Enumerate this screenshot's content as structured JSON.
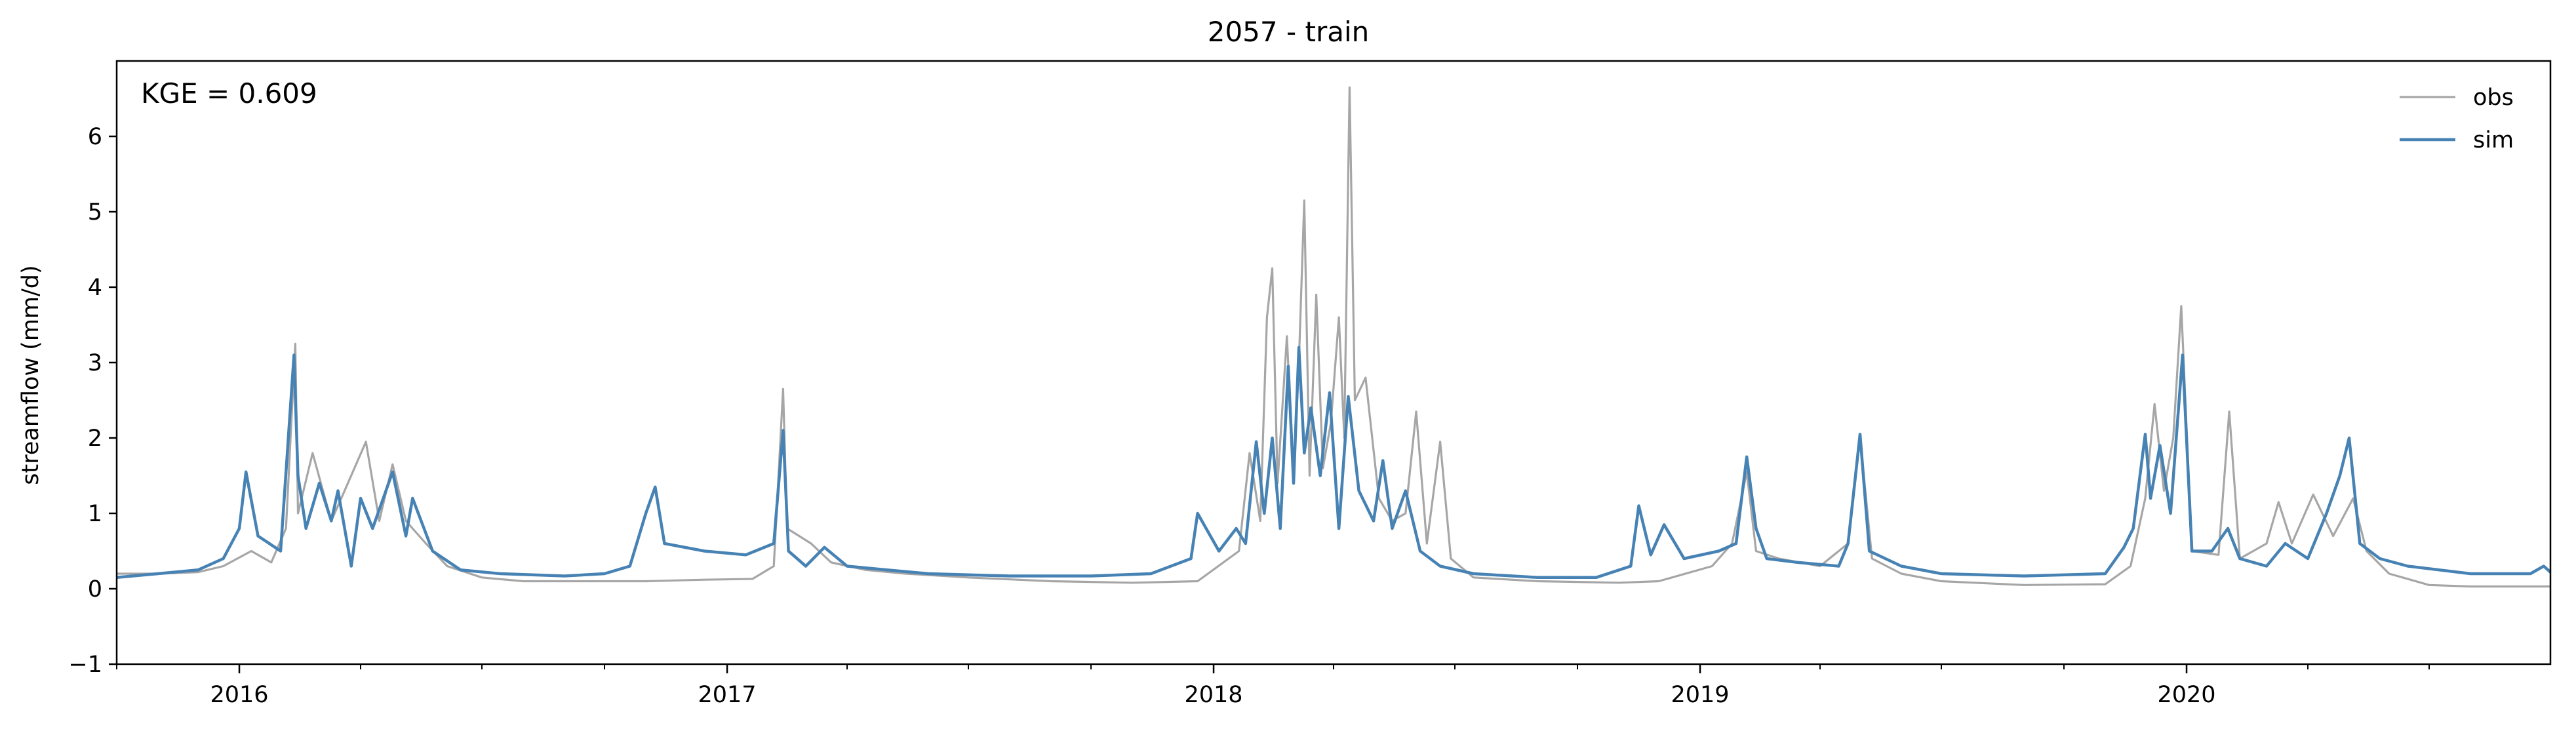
{
  "chart_data": {
    "type": "line",
    "title": "2057 - train",
    "xlabel": "",
    "ylabel": "streamflow (mm/d)",
    "annotation": "KGE = 0.609",
    "xlim": [
      "2015-10-01",
      "2020-09-30"
    ],
    "ylim": [
      -1,
      7
    ],
    "yticks": [
      -1,
      0,
      1,
      2,
      3,
      4,
      5,
      6
    ],
    "xticks": [
      {
        "date": "2016-01-01",
        "label": "2016"
      },
      {
        "date": "2017-01-01",
        "label": "2017"
      },
      {
        "date": "2018-01-01",
        "label": "2018"
      },
      {
        "date": "2019-01-01",
        "label": "2019"
      },
      {
        "date": "2020-01-01",
        "label": "2020"
      }
    ],
    "legend": {
      "placement": "top-right"
    },
    "grid": false,
    "series": [
      {
        "name": "obs",
        "color": "#a6a6a6",
        "points": [
          [
            "2015-10-01",
            0.2
          ],
          [
            "2015-11-01",
            0.2
          ],
          [
            "2015-12-01",
            0.22
          ],
          [
            "2015-12-20",
            0.3
          ],
          [
            "2016-01-10",
            0.5
          ],
          [
            "2016-01-25",
            0.35
          ],
          [
            "2016-02-05",
            0.8
          ],
          [
            "2016-02-12",
            3.25
          ],
          [
            "2016-02-14",
            1.0
          ],
          [
            "2016-02-25",
            1.8
          ],
          [
            "2016-03-10",
            0.9
          ],
          [
            "2016-03-20",
            1.3
          ],
          [
            "2016-04-05",
            1.95
          ],
          [
            "2016-04-15",
            0.9
          ],
          [
            "2016-04-25",
            1.65
          ],
          [
            "2016-05-05",
            0.9
          ],
          [
            "2016-05-20",
            0.6
          ],
          [
            "2016-06-05",
            0.3
          ],
          [
            "2016-07-01",
            0.15
          ],
          [
            "2016-08-01",
            0.1
          ],
          [
            "2016-09-01",
            0.1
          ],
          [
            "2016-10-01",
            0.1
          ],
          [
            "2016-11-01",
            0.1
          ],
          [
            "2016-12-15",
            0.12
          ],
          [
            "2017-01-20",
            0.13
          ],
          [
            "2017-02-05",
            0.3
          ],
          [
            "2017-02-12",
            2.65
          ],
          [
            "2017-02-15",
            0.8
          ],
          [
            "2017-03-05",
            0.6
          ],
          [
            "2017-03-20",
            0.35
          ],
          [
            "2017-04-15",
            0.25
          ],
          [
            "2017-05-15",
            0.2
          ],
          [
            "2017-07-01",
            0.15
          ],
          [
            "2017-09-01",
            0.1
          ],
          [
            "2017-11-01",
            0.08
          ],
          [
            "2017-12-20",
            0.1
          ],
          [
            "2018-01-20",
            0.5
          ],
          [
            "2018-01-28",
            1.8
          ],
          [
            "2018-02-05",
            0.9
          ],
          [
            "2018-02-10",
            3.6
          ],
          [
            "2018-02-14",
            4.25
          ],
          [
            "2018-02-18",
            1.4
          ],
          [
            "2018-02-25",
            3.35
          ],
          [
            "2018-03-02",
            1.5
          ],
          [
            "2018-03-06",
            3.0
          ],
          [
            "2018-03-10",
            5.15
          ],
          [
            "2018-03-14",
            1.5
          ],
          [
            "2018-03-19",
            3.9
          ],
          [
            "2018-03-24",
            1.6
          ],
          [
            "2018-03-30",
            2.2
          ],
          [
            "2018-04-05",
            3.6
          ],
          [
            "2018-04-09",
            2.0
          ],
          [
            "2018-04-13",
            6.65
          ],
          [
            "2018-04-17",
            2.5
          ],
          [
            "2018-04-25",
            2.8
          ],
          [
            "2018-05-05",
            1.2
          ],
          [
            "2018-05-15",
            0.9
          ],
          [
            "2018-05-25",
            1.0
          ],
          [
            "2018-06-02",
            2.35
          ],
          [
            "2018-06-10",
            0.6
          ],
          [
            "2018-06-20",
            1.95
          ],
          [
            "2018-06-28",
            0.4
          ],
          [
            "2018-07-15",
            0.15
          ],
          [
            "2018-09-01",
            0.1
          ],
          [
            "2018-11-01",
            0.08
          ],
          [
            "2018-12-01",
            0.1
          ],
          [
            "2019-01-10",
            0.3
          ],
          [
            "2019-01-25",
            0.6
          ],
          [
            "2019-02-05",
            1.55
          ],
          [
            "2019-02-12",
            0.5
          ],
          [
            "2019-03-01",
            0.4
          ],
          [
            "2019-04-01",
            0.3
          ],
          [
            "2019-04-22",
            0.6
          ],
          [
            "2019-05-01",
            2.0
          ],
          [
            "2019-05-10",
            0.4
          ],
          [
            "2019-06-01",
            0.2
          ],
          [
            "2019-07-01",
            0.1
          ],
          [
            "2019-09-01",
            0.05
          ],
          [
            "2019-11-01",
            0.06
          ],
          [
            "2019-11-20",
            0.3
          ],
          [
            "2019-12-01",
            1.2
          ],
          [
            "2019-12-08",
            2.45
          ],
          [
            "2019-12-15",
            1.3
          ],
          [
            "2019-12-22",
            2.0
          ],
          [
            "2019-12-28",
            3.75
          ],
          [
            "2020-01-05",
            0.5
          ],
          [
            "2020-01-25",
            0.45
          ],
          [
            "2020-02-02",
            2.35
          ],
          [
            "2020-02-10",
            0.4
          ],
          [
            "2020-03-01",
            0.6
          ],
          [
            "2020-03-10",
            1.15
          ],
          [
            "2020-03-20",
            0.6
          ],
          [
            "2020-04-05",
            1.25
          ],
          [
            "2020-04-20",
            0.7
          ],
          [
            "2020-05-05",
            1.2
          ],
          [
            "2020-05-15",
            0.5
          ],
          [
            "2020-06-01",
            0.2
          ],
          [
            "2020-07-01",
            0.05
          ],
          [
            "2020-08-01",
            0.03
          ],
          [
            "2020-09-30",
            0.03
          ]
        ]
      },
      {
        "name": "sim",
        "color": "#4682b4",
        "points": [
          [
            "2015-10-01",
            0.15
          ],
          [
            "2015-11-01",
            0.2
          ],
          [
            "2015-12-01",
            0.25
          ],
          [
            "2015-12-20",
            0.4
          ],
          [
            "2016-01-01",
            0.8
          ],
          [
            "2016-01-06",
            1.55
          ],
          [
            "2016-01-15",
            0.7
          ],
          [
            "2016-02-01",
            0.5
          ],
          [
            "2016-02-11",
            3.1
          ],
          [
            "2016-02-14",
            1.5
          ],
          [
            "2016-02-20",
            0.8
          ],
          [
            "2016-03-01",
            1.4
          ],
          [
            "2016-03-10",
            0.9
          ],
          [
            "2016-03-15",
            1.3
          ],
          [
            "2016-03-25",
            0.3
          ],
          [
            "2016-04-01",
            1.2
          ],
          [
            "2016-04-10",
            0.8
          ],
          [
            "2016-04-25",
            1.55
          ],
          [
            "2016-05-05",
            0.7
          ],
          [
            "2016-05-10",
            1.2
          ],
          [
            "2016-05-25",
            0.5
          ],
          [
            "2016-06-15",
            0.25
          ],
          [
            "2016-07-15",
            0.2
          ],
          [
            "2016-09-01",
            0.17
          ],
          [
            "2016-10-01",
            0.2
          ],
          [
            "2016-10-20",
            0.3
          ],
          [
            "2016-11-01",
            1.0
          ],
          [
            "2016-11-08",
            1.35
          ],
          [
            "2016-11-15",
            0.6
          ],
          [
            "2016-12-15",
            0.5
          ],
          [
            "2017-01-15",
            0.45
          ],
          [
            "2017-02-05",
            0.6
          ],
          [
            "2017-02-12",
            2.1
          ],
          [
            "2017-02-16",
            0.5
          ],
          [
            "2017-03-01",
            0.3
          ],
          [
            "2017-03-15",
            0.55
          ],
          [
            "2017-04-01",
            0.3
          ],
          [
            "2017-05-01",
            0.25
          ],
          [
            "2017-06-01",
            0.2
          ],
          [
            "2017-08-01",
            0.17
          ],
          [
            "2017-10-01",
            0.17
          ],
          [
            "2017-11-15",
            0.2
          ],
          [
            "2017-12-15",
            0.4
          ],
          [
            "2017-12-20",
            1.0
          ],
          [
            "2018-01-05",
            0.5
          ],
          [
            "2018-01-18",
            0.8
          ],
          [
            "2018-01-25",
            0.6
          ],
          [
            "2018-02-02",
            1.95
          ],
          [
            "2018-02-08",
            1.0
          ],
          [
            "2018-02-14",
            2.0
          ],
          [
            "2018-02-20",
            0.8
          ],
          [
            "2018-02-26",
            2.95
          ],
          [
            "2018-03-02",
            1.4
          ],
          [
            "2018-03-06",
            3.2
          ],
          [
            "2018-03-10",
            1.8
          ],
          [
            "2018-03-15",
            2.4
          ],
          [
            "2018-03-22",
            1.5
          ],
          [
            "2018-03-29",
            2.6
          ],
          [
            "2018-04-05",
            0.8
          ],
          [
            "2018-04-12",
            2.55
          ],
          [
            "2018-04-20",
            1.3
          ],
          [
            "2018-05-01",
            0.9
          ],
          [
            "2018-05-08",
            1.7
          ],
          [
            "2018-05-15",
            0.8
          ],
          [
            "2018-05-25",
            1.3
          ],
          [
            "2018-06-05",
            0.5
          ],
          [
            "2018-06-20",
            0.3
          ],
          [
            "2018-07-15",
            0.2
          ],
          [
            "2018-09-01",
            0.15
          ],
          [
            "2018-10-15",
            0.15
          ],
          [
            "2018-11-10",
            0.3
          ],
          [
            "2018-11-16",
            1.1
          ],
          [
            "2018-11-25",
            0.45
          ],
          [
            "2018-12-05",
            0.85
          ],
          [
            "2018-12-20",
            0.4
          ],
          [
            "2019-01-15",
            0.5
          ],
          [
            "2019-01-28",
            0.6
          ],
          [
            "2019-02-05",
            1.75
          ],
          [
            "2019-02-12",
            0.8
          ],
          [
            "2019-02-20",
            0.4
          ],
          [
            "2019-03-15",
            0.35
          ],
          [
            "2019-04-15",
            0.3
          ],
          [
            "2019-04-22",
            0.6
          ],
          [
            "2019-05-01",
            2.05
          ],
          [
            "2019-05-08",
            0.5
          ],
          [
            "2019-06-01",
            0.3
          ],
          [
            "2019-07-01",
            0.2
          ],
          [
            "2019-09-01",
            0.17
          ],
          [
            "2019-11-01",
            0.2
          ],
          [
            "2019-11-15",
            0.55
          ],
          [
            "2019-11-22",
            0.8
          ],
          [
            "2019-12-01",
            2.05
          ],
          [
            "2019-12-05",
            1.2
          ],
          [
            "2019-12-12",
            1.9
          ],
          [
            "2019-12-20",
            1.0
          ],
          [
            "2019-12-29",
            3.1
          ],
          [
            "2020-01-05",
            0.5
          ],
          [
            "2020-01-20",
            0.5
          ],
          [
            "2020-02-01",
            0.8
          ],
          [
            "2020-02-10",
            0.4
          ],
          [
            "2020-03-01",
            0.3
          ],
          [
            "2020-03-15",
            0.6
          ],
          [
            "2020-04-01",
            0.4
          ],
          [
            "2020-04-15",
            1.0
          ],
          [
            "2020-04-25",
            1.5
          ],
          [
            "2020-05-02",
            2.0
          ],
          [
            "2020-05-10",
            0.6
          ],
          [
            "2020-05-25",
            0.4
          ],
          [
            "2020-06-15",
            0.3
          ],
          [
            "2020-08-01",
            0.2
          ],
          [
            "2020-09-15",
            0.2
          ],
          [
            "2020-09-25",
            0.3
          ],
          [
            "2020-09-30",
            0.22
          ]
        ]
      }
    ]
  }
}
